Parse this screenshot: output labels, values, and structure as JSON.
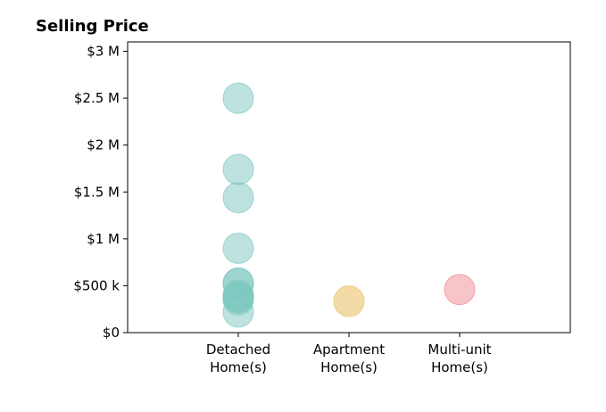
{
  "chart_data": {
    "type": "scatter",
    "title": "Selling Price",
    "xlabel": "",
    "ylabel": "",
    "categories": [
      "Detached\nHome(s)",
      "Apartment\nHome(s)",
      "Multi-unit\nHome(s)"
    ],
    "ylim": [
      0,
      3100000
    ],
    "yticks": [
      {
        "value": 0,
        "label": "$0"
      },
      {
        "value": 500000,
        "label": "$500 k"
      },
      {
        "value": 1000000,
        "label": "$1 M"
      },
      {
        "value": 1500000,
        "label": "$1.5 M"
      },
      {
        "value": 2000000,
        "label": "$2 M"
      },
      {
        "value": 2500000,
        "label": "$2.5 M"
      },
      {
        "value": 3000000,
        "label": "$3 M"
      }
    ],
    "grid": false,
    "series": [
      {
        "category": "Detached\nHome(s)",
        "color": "#7ec8bf",
        "values": [
          2500000,
          1740000,
          1440000,
          900000,
          530000,
          520000,
          400000,
          380000,
          370000,
          350000,
          220000
        ]
      },
      {
        "category": "Apartment\nHome(s)",
        "color": "#f0d08c",
        "values": [
          340000,
          330000
        ]
      },
      {
        "category": "Multi-unit\nHome(s)",
        "color": "#f08a93",
        "values": [
          460000
        ]
      }
    ]
  }
}
